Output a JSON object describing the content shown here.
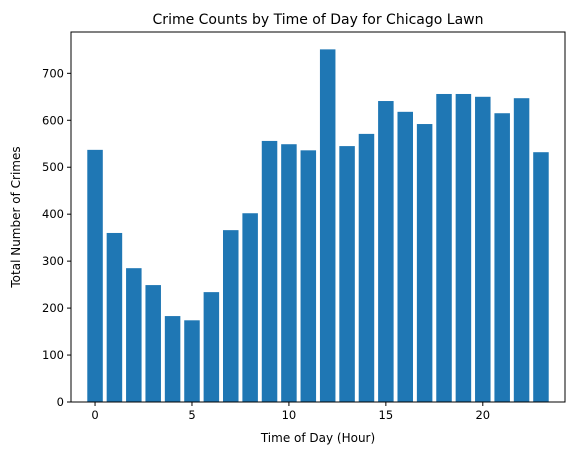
{
  "chart_data": {
    "type": "bar",
    "title": "Crime Counts by Time of Day for Chicago Lawn",
    "xlabel": "Time of Day (Hour)",
    "ylabel": "Total Number of Crimes",
    "categories": [
      0,
      1,
      2,
      3,
      4,
      5,
      6,
      7,
      8,
      9,
      10,
      11,
      12,
      13,
      14,
      15,
      16,
      17,
      18,
      19,
      20,
      21,
      22,
      23
    ],
    "values": [
      537,
      360,
      285,
      249,
      183,
      174,
      234,
      366,
      402,
      556,
      549,
      536,
      751,
      545,
      571,
      641,
      618,
      592,
      656,
      656,
      650,
      615,
      647,
      532
    ],
    "xlim": [
      -1.24,
      24.24
    ],
    "ylim": [
      0,
      788
    ],
    "xticks": [
      0,
      5,
      10,
      15,
      20
    ],
    "yticks": [
      0,
      100,
      200,
      300,
      400,
      500,
      600,
      700
    ],
    "bar_color": "#1f77b4",
    "grid": false
  }
}
